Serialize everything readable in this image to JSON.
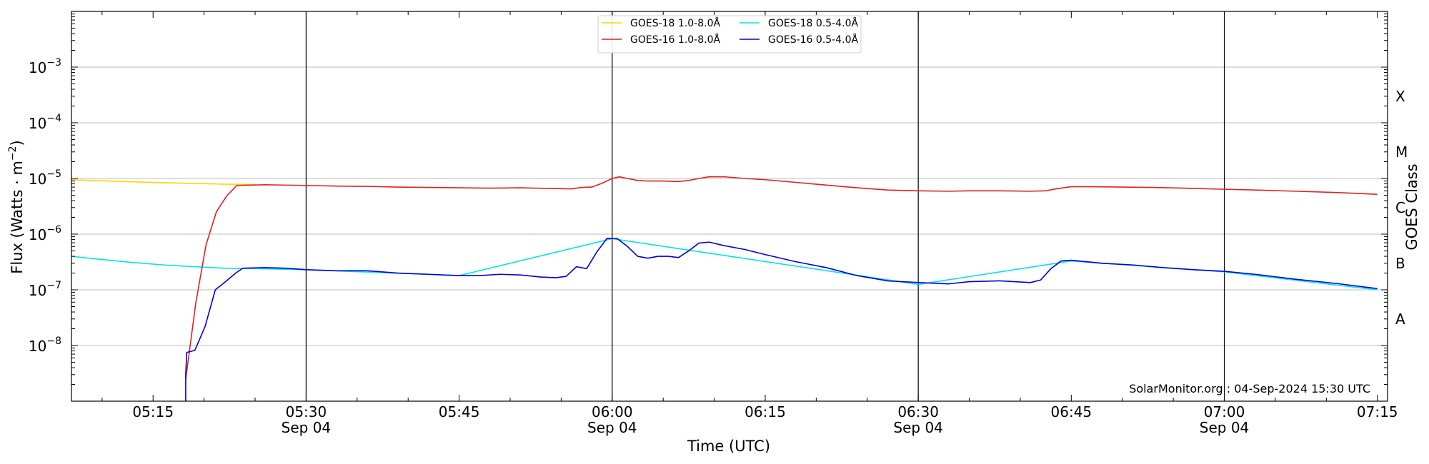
{
  "chart_data": {
    "type": "line",
    "xlabel": "Time (UTC)",
    "ylabel_parts": {
      "prefix": "Flux (Watts · m",
      "exponent": "−2",
      "suffix": ")"
    },
    "right_label": "GOES Class",
    "credit": "SolarMonitor.org : 04-Sep-2024 15:30 UTC",
    "y_scale": "log",
    "xlim": [
      "05:07",
      "07:16"
    ],
    "ylim": [
      1e-09,
      0.01
    ],
    "x_ticks": [
      {
        "t": "05:15",
        "label": "05:15",
        "sub": ""
      },
      {
        "t": "05:30",
        "label": "05:30",
        "sub": "Sep 04"
      },
      {
        "t": "05:45",
        "label": "05:45",
        "sub": ""
      },
      {
        "t": "06:00",
        "label": "06:00",
        "sub": "Sep 04"
      },
      {
        "t": "06:15",
        "label": "06:15",
        "sub": ""
      },
      {
        "t": "06:30",
        "label": "06:30",
        "sub": "Sep 04"
      },
      {
        "t": "06:45",
        "label": "06:45",
        "sub": ""
      },
      {
        "t": "07:00",
        "label": "07:00",
        "sub": "Sep 04"
      },
      {
        "t": "07:15",
        "label": "07:15",
        "sub": ""
      }
    ],
    "y_ticks": [
      {
        "value": 1e-08,
        "base": "10",
        "exp": "−8"
      },
      {
        "value": 1e-07,
        "base": "10",
        "exp": "−7"
      },
      {
        "value": 1e-06,
        "base": "10",
        "exp": "−6"
      },
      {
        "value": 1e-05,
        "base": "10",
        "exp": "−5"
      },
      {
        "value": 0.0001,
        "base": "10",
        "exp": "−4"
      },
      {
        "value": 0.001,
        "base": "10",
        "exp": "−3"
      }
    ],
    "goes_classes": [
      {
        "label": "A",
        "value": 3e-08
      },
      {
        "label": "B",
        "value": 3e-07
      },
      {
        "label": "C",
        "value": 3e-06
      },
      {
        "label": "M",
        "value": 3e-05
      },
      {
        "label": "X",
        "value": 0.0003
      }
    ],
    "horizontal_grid": [
      1e-08,
      1e-07,
      1e-06,
      1e-05,
      0.0001,
      0.001
    ],
    "vertical_lines": [
      "05:30",
      "06:00",
      "06:30",
      "07:00"
    ],
    "legend": {
      "placement": "top-center",
      "columns": 2
    },
    "series": [
      {
        "name": "GOES-18 1.0-8.0Å",
        "color": "#ffd400",
        "points": [
          [
            "05:07",
            9.5e-06
          ],
          [
            "05:12",
            8.8e-06
          ],
          [
            "05:17",
            8.3e-06
          ],
          [
            "05:22",
            7.9e-06
          ],
          [
            "05:25",
            7.8e-06
          ]
        ]
      },
      {
        "name": "GOES-18 0.5-4.0Å",
        "color": "#00e5e5",
        "points": [
          [
            "05:07",
            4e-07
          ],
          [
            "05:10",
            3.5e-07
          ],
          [
            "05:13",
            3.1e-07
          ],
          [
            "05:16",
            2.8e-07
          ],
          [
            "05:19",
            2.6e-07
          ],
          [
            "05:22",
            2.45e-07
          ],
          [
            "05:25",
            2.4e-07
          ],
          [
            "05:30",
            2.3e-07
          ],
          [
            "05:45",
            1.8e-07
          ],
          [
            "06:00",
            8.3e-07
          ],
          [
            "06:30",
            1.25e-07
          ],
          [
            "06:45",
            3.3e-07
          ],
          [
            "07:00",
            2.1e-07
          ],
          [
            "07:15",
            1e-07
          ]
        ]
      },
      {
        "name": "GOES-16 1.0-8.0Å",
        "color": "#e02020",
        "points": [
          [
            "05:18.2",
            2.5e-09
          ],
          [
            "05:19.2",
            6e-08
          ],
          [
            "05:20.2",
            6.5e-07
          ],
          [
            "05:21.2",
            2.5e-06
          ],
          [
            "05:22.2",
            4.8e-06
          ],
          [
            "05:23.2",
            7.5e-06
          ],
          [
            "05:26",
            7.7e-06
          ],
          [
            "05:30",
            7.5e-06
          ],
          [
            "05:33",
            7.3e-06
          ],
          [
            "05:36",
            7.2e-06
          ],
          [
            "05:39",
            7e-06
          ],
          [
            "05:42",
            6.9e-06
          ],
          [
            "05:45",
            6.8e-06
          ],
          [
            "05:48",
            6.7e-06
          ],
          [
            "05:51",
            6.8e-06
          ],
          [
            "05:54",
            6.6e-06
          ],
          [
            "05:56",
            6.5e-06
          ],
          [
            "05:57",
            6.9e-06
          ],
          [
            "05:58",
            7e-06
          ],
          [
            "05:59",
            8.2e-06
          ],
          [
            "06:00",
            1e-05
          ],
          [
            "06:00.7",
            1.07e-05
          ],
          [
            "06:01.5",
            1e-05
          ],
          [
            "06:02.5",
            9.2e-06
          ],
          [
            "06:03.5",
            9e-06
          ],
          [
            "06:05",
            9e-06
          ],
          [
            "06:06.5",
            8.8e-06
          ],
          [
            "06:07.5",
            9.2e-06
          ],
          [
            "06:08.5",
            1e-05
          ],
          [
            "06:09.5",
            1.07e-05
          ],
          [
            "06:11",
            1.07e-05
          ],
          [
            "06:13",
            1e-05
          ],
          [
            "06:15",
            9.5e-06
          ],
          [
            "06:18",
            8.5e-06
          ],
          [
            "06:21",
            7.6e-06
          ],
          [
            "06:24",
            6.8e-06
          ],
          [
            "06:27",
            6.2e-06
          ],
          [
            "06:30",
            6e-06
          ],
          [
            "06:33",
            5.9e-06
          ],
          [
            "06:35",
            6e-06
          ],
          [
            "06:38",
            6e-06
          ],
          [
            "06:41",
            5.9e-06
          ],
          [
            "06:42.5",
            6e-06
          ],
          [
            "06:43.5",
            6.5e-06
          ],
          [
            "06:45",
            7.1e-06
          ],
          [
            "06:47",
            7.1e-06
          ],
          [
            "06:50",
            7e-06
          ],
          [
            "06:53",
            6.9e-06
          ],
          [
            "06:56",
            6.7e-06
          ],
          [
            "07:00",
            6.4e-06
          ],
          [
            "07:03",
            6.2e-06
          ],
          [
            "07:07",
            5.9e-06
          ],
          [
            "07:11",
            5.6e-06
          ],
          [
            "07:15",
            5.2e-06
          ]
        ]
      },
      {
        "name": "GOES-16 0.5-4.0Å",
        "color": "#0000dd",
        "points": [
          [
            "05:18.2",
            1e-09
          ],
          [
            "05:18.2",
            3e-09
          ],
          [
            "05:18.3",
            7.5e-09
          ],
          [
            "05:19.1",
            8.2e-09
          ],
          [
            "05:20.1",
            2.2e-08
          ],
          [
            "05:21.1",
            1e-07
          ],
          [
            "05:22.1",
            1.4e-07
          ],
          [
            "05:23.1",
            2e-07
          ],
          [
            "05:23.8",
            2.45e-07
          ],
          [
            "05:26",
            2.5e-07
          ],
          [
            "05:28",
            2.45e-07
          ],
          [
            "05:30",
            2.3e-07
          ],
          [
            "05:33",
            2.2e-07
          ],
          [
            "05:36",
            2.2e-07
          ],
          [
            "05:39",
            2e-07
          ],
          [
            "05:42",
            1.9e-07
          ],
          [
            "05:45",
            1.8e-07
          ],
          [
            "05:47",
            1.8e-07
          ],
          [
            "05:49",
            1.9e-07
          ],
          [
            "05:51",
            1.85e-07
          ],
          [
            "05:53",
            1.7e-07
          ],
          [
            "05:54.5",
            1.65e-07
          ],
          [
            "05:55.5",
            1.75e-07
          ],
          [
            "05:56.5",
            2.6e-07
          ],
          [
            "05:57.5",
            2.4e-07
          ],
          [
            "05:58.5",
            4.8e-07
          ],
          [
            "05:59.5",
            8.4e-07
          ],
          [
            "06:00.5",
            8.3e-07
          ],
          [
            "06:01.5",
            6e-07
          ],
          [
            "06:02.5",
            4e-07
          ],
          [
            "06:03.5",
            3.7e-07
          ],
          [
            "06:04.5",
            4e-07
          ],
          [
            "06:05.5",
            4e-07
          ],
          [
            "06:06.5",
            3.8e-07
          ],
          [
            "06:07.5",
            5e-07
          ],
          [
            "06:08.5",
            6.9e-07
          ],
          [
            "06:09.5",
            7.2e-07
          ],
          [
            "06:11",
            6.2e-07
          ],
          [
            "06:13",
            5.3e-07
          ],
          [
            "06:15",
            4.3e-07
          ],
          [
            "06:18",
            3.2e-07
          ],
          [
            "06:21",
            2.5e-07
          ],
          [
            "06:24",
            1.8e-07
          ],
          [
            "06:27",
            1.45e-07
          ],
          [
            "06:30",
            1.35e-07
          ],
          [
            "06:33",
            1.28e-07
          ],
          [
            "06:35",
            1.4e-07
          ],
          [
            "06:38",
            1.45e-07
          ],
          [
            "06:41",
            1.35e-07
          ],
          [
            "06:42",
            1.5e-07
          ],
          [
            "06:43",
            2.4e-07
          ],
          [
            "06:44",
            3.3e-07
          ],
          [
            "06:45",
            3.4e-07
          ],
          [
            "06:48",
            3e-07
          ],
          [
            "06:51",
            2.8e-07
          ],
          [
            "06:54",
            2.5e-07
          ],
          [
            "06:57",
            2.3e-07
          ],
          [
            "07:00",
            2.15e-07
          ],
          [
            "07:03",
            1.9e-07
          ],
          [
            "07:07",
            1.55e-07
          ],
          [
            "07:11",
            1.3e-07
          ],
          [
            "07:15",
            1.05e-07
          ]
        ]
      }
    ]
  }
}
